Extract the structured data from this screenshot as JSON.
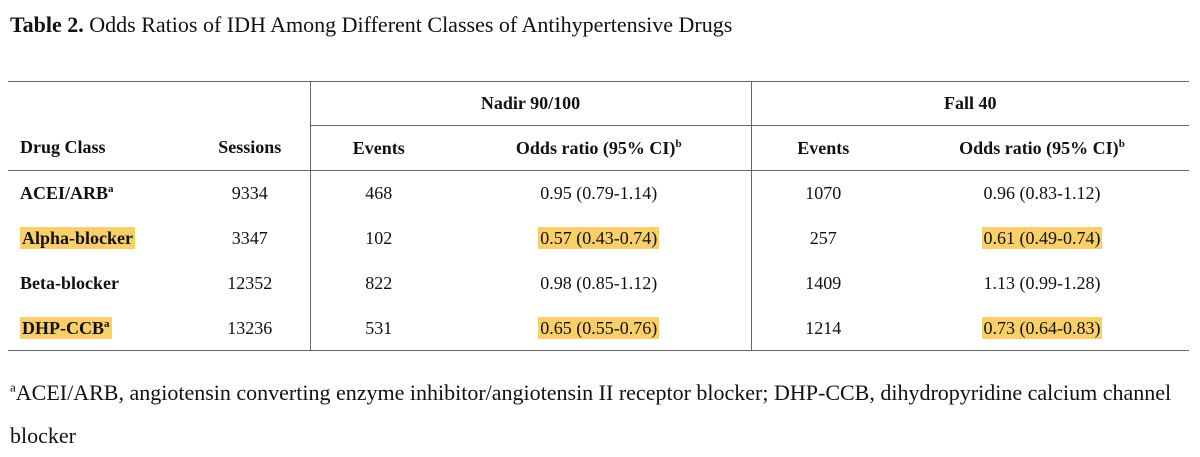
{
  "caption": {
    "label": "Table 2.",
    "title": "Odds Ratios of IDH Among Different Classes of Antihypertensive Drugs"
  },
  "table": {
    "groups": [
      "Nadir 90/100",
      "Fall 40"
    ],
    "headers": {
      "drug_class": "Drug Class",
      "sessions": "Sessions",
      "events": "Events",
      "odds_ratio": "Odds ratio (95% CI)",
      "odds_ratio_sup": "b"
    },
    "rows": [
      {
        "drug": "ACEI/ARB",
        "drug_sup": "a",
        "sessions": "9334",
        "n_events": "468",
        "n_or": "0.95 (0.79-1.14)",
        "f_events": "1070",
        "f_or": "0.96 (0.83-1.12)"
      },
      {
        "drug": "Alpha-blocker",
        "drug_sup": "",
        "sessions": "3347",
        "n_events": "102",
        "n_or": "0.57 (0.43-0.74)",
        "f_events": "257",
        "f_or": "0.61 (0.49-0.74)"
      },
      {
        "drug": "Beta-blocker",
        "drug_sup": "",
        "sessions": "12352",
        "n_events": "822",
        "n_or": "0.98 (0.85-1.12)",
        "f_events": "1409",
        "f_or": "1.13 (0.99-1.28)"
      },
      {
        "drug": "DHP-CCB",
        "drug_sup": "a",
        "sessions": "13236",
        "n_events": "531",
        "n_or": "0.65 (0.55-0.76)",
        "f_events": "1214",
        "f_or": "0.73 (0.64-0.83)"
      }
    ]
  },
  "footnote": {
    "marker": "a",
    "text": "ACEI/ARB, angiotensin converting enzyme inhibitor/angiotensin II receptor blocker; DHP-CCB, dihydropyridine calcium channel blocker"
  },
  "colors": {
    "highlight": "#f9cf6a",
    "rule": "#666666"
  }
}
